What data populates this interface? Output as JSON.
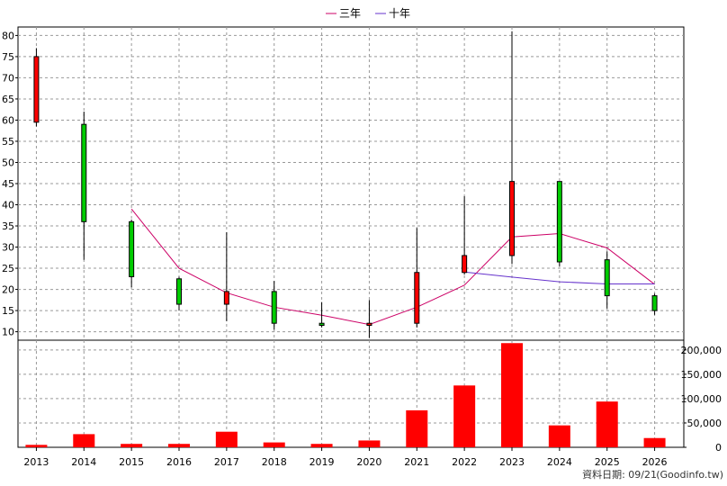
{
  "chart_data": {
    "type": "candlestick+bar",
    "categories": [
      "2013",
      "2014",
      "2015",
      "2016",
      "2017",
      "2018",
      "2019",
      "2020",
      "2021",
      "2022",
      "2023",
      "2024",
      "2025",
      "2026"
    ],
    "price_panel": {
      "ylim": [
        8,
        82
      ],
      "yticks": [
        10,
        15,
        20,
        25,
        30,
        35,
        40,
        45,
        50,
        55,
        60,
        65,
        70,
        75,
        80
      ],
      "candles": [
        {
          "open": 59.5,
          "close": 75.0,
          "high": 77.0,
          "low": 58.5
        },
        {
          "open": 59.0,
          "close": 36.0,
          "high": 62.0,
          "low": 27.0
        },
        {
          "open": 36.0,
          "close": 23.0,
          "high": 36.5,
          "low": 20.5
        },
        {
          "open": 22.5,
          "close": 16.5,
          "high": 23.0,
          "low": 15.0
        },
        {
          "open": 16.5,
          "close": 19.5,
          "high": 33.5,
          "low": 12.5
        },
        {
          "open": 19.5,
          "close": 12.0,
          "high": 22.0,
          "low": 10.5
        },
        {
          "open": 12.0,
          "close": 11.5,
          "high": 17.0,
          "low": 11.0
        },
        {
          "open": 11.5,
          "close": 12.0,
          "high": 17.5,
          "low": 8.5
        },
        {
          "open": 12.0,
          "close": 24.0,
          "high": 34.5,
          "low": 11.0
        },
        {
          "open": 24.0,
          "close": 28.0,
          "high": 42.0,
          "low": 23.5
        },
        {
          "open": 28.0,
          "close": 45.5,
          "high": 81.0,
          "low": 26.0
        },
        {
          "open": 45.5,
          "close": 26.5,
          "high": 45.5,
          "low": 25.5
        },
        {
          "open": 27.0,
          "close": 18.5,
          "high": 29.0,
          "low": 15.5
        },
        {
          "open": 18.5,
          "close": 15.0,
          "high": 19.0,
          "low": 14.0
        }
      ],
      "up_color": "#ff0000",
      "down_color": "#00cc00",
      "series": [
        {
          "name": "三年",
          "color": "#cc0066",
          "values": [
            null,
            null,
            39.0,
            25.0,
            19.2,
            15.8,
            13.9,
            11.7,
            15.8,
            21.0,
            32.4,
            33.2,
            29.8,
            21.2
          ]
        },
        {
          "name": "十年",
          "color": "#6633cc",
          "values": [
            null,
            null,
            null,
            null,
            null,
            null,
            null,
            null,
            null,
            24.1,
            22.9,
            21.8,
            21.3,
            21.3
          ]
        }
      ]
    },
    "volume_panel": {
      "ylim": [
        0,
        220000
      ],
      "yticks": [
        0,
        50000,
        100000,
        150000,
        200000
      ],
      "ytick_labels": [
        "0",
        "50,000",
        "100,000",
        "150,000",
        "200,000"
      ],
      "values": [
        5000,
        27000,
        7000,
        7000,
        32000,
        10000,
        7000,
        14000,
        76000,
        127000,
        214000,
        45000,
        94000,
        19000
      ],
      "color": "#ff0000"
    },
    "legend_position": "top-center",
    "grid": true
  },
  "footer": {
    "date_text": "資料日期: 09/21",
    "source_text": "(Goodinfo.tw)"
  }
}
